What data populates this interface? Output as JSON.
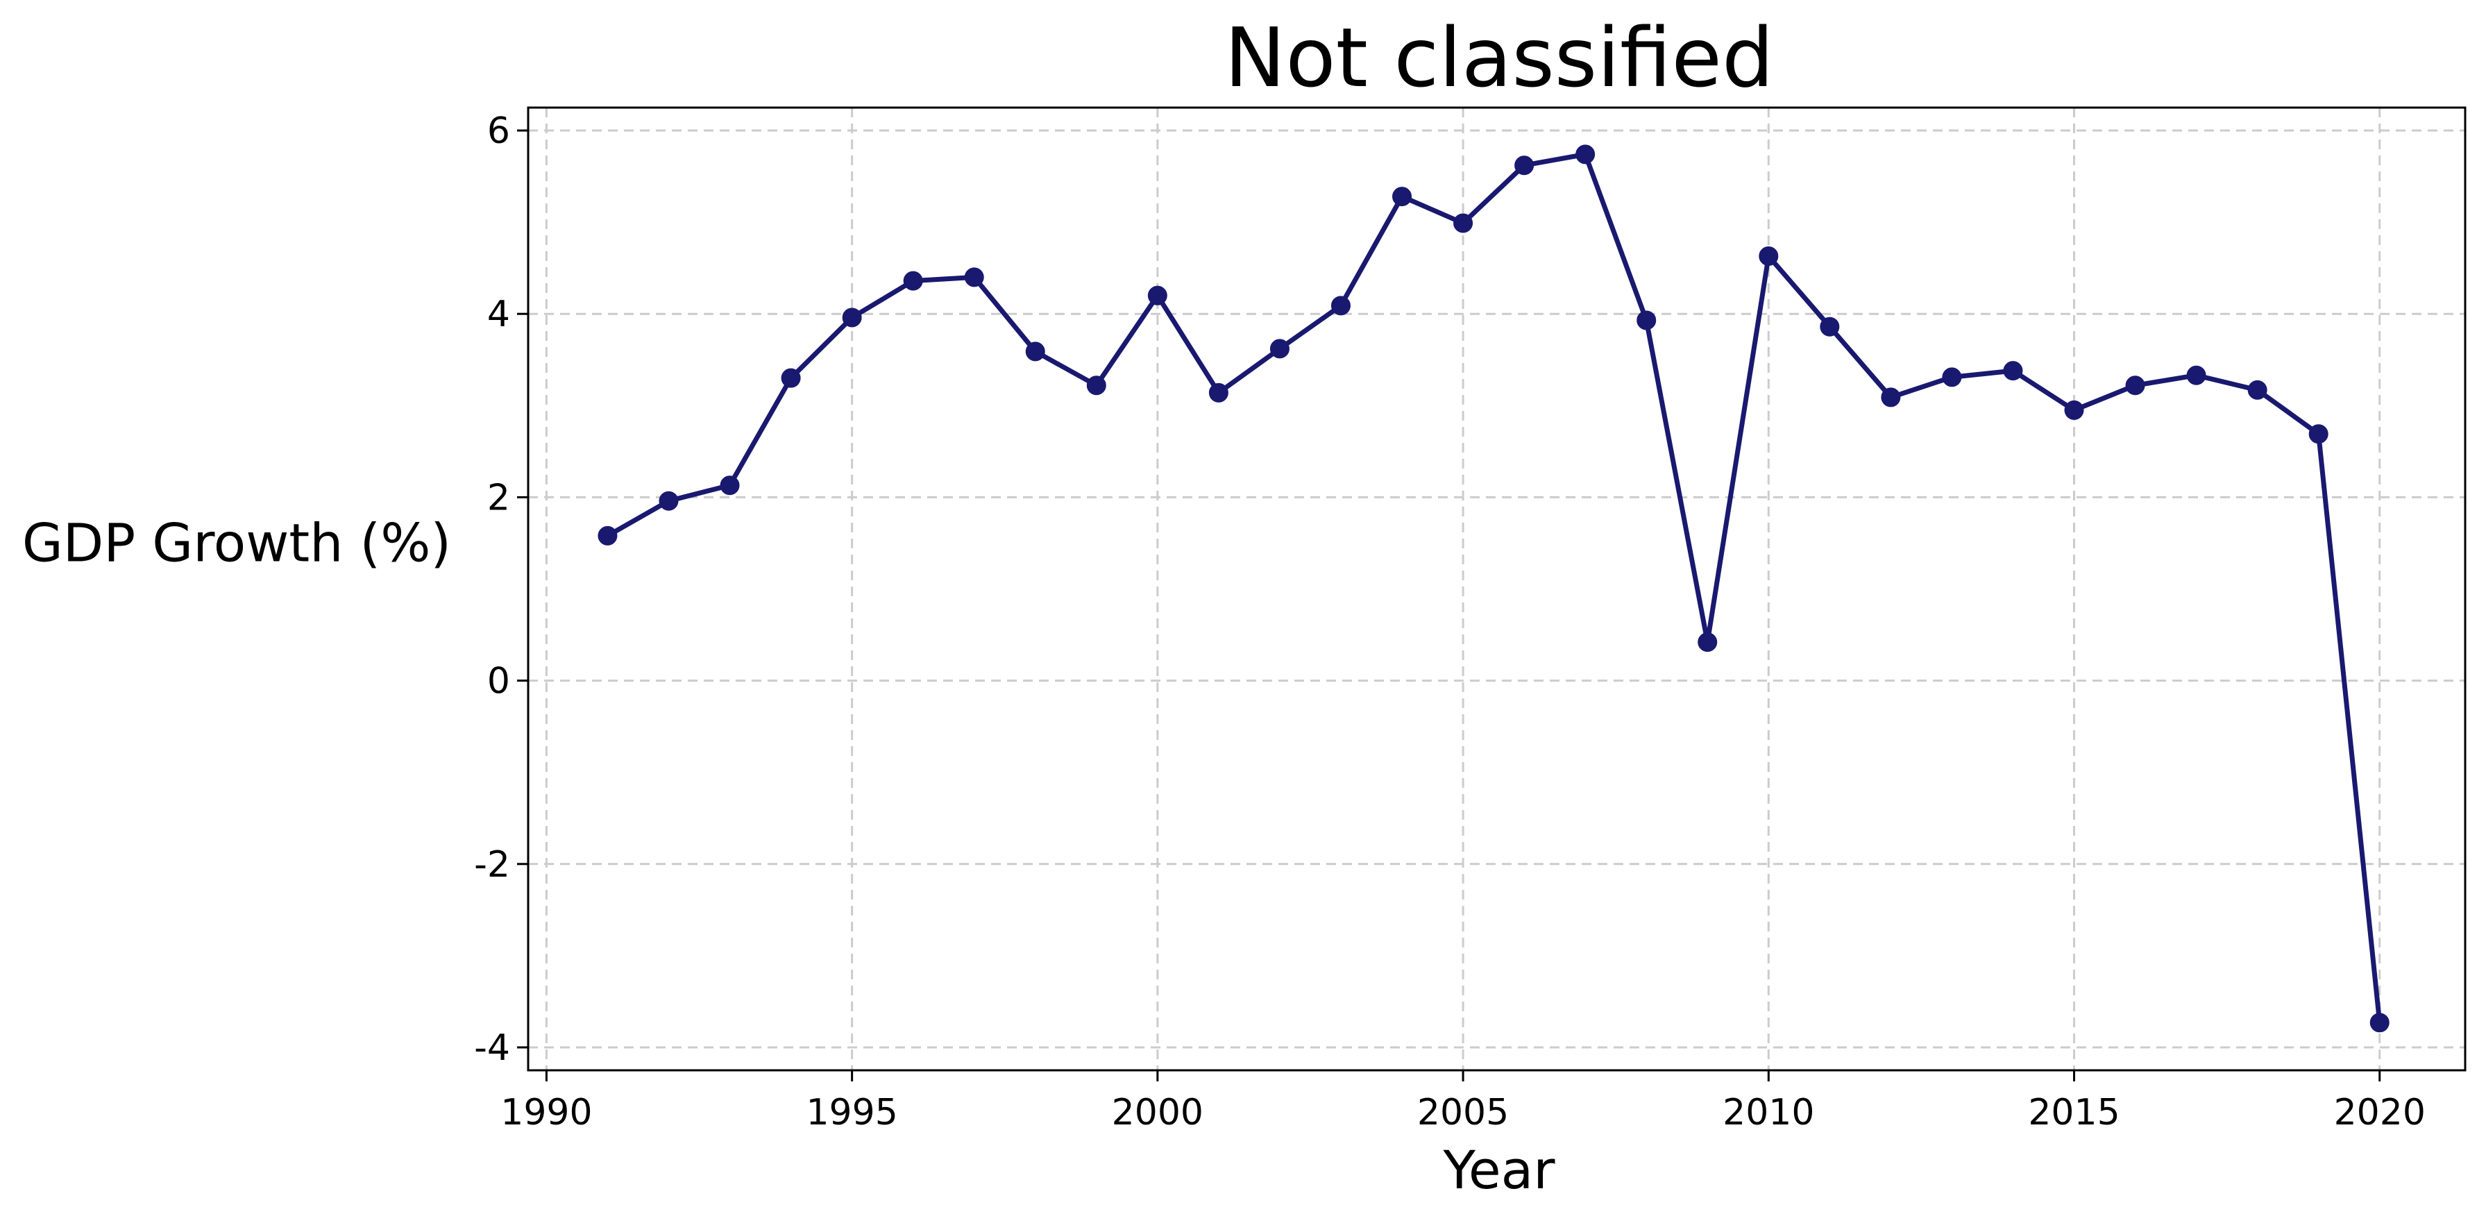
{
  "chart_data": {
    "type": "line",
    "title": "Not classified",
    "xlabel": "Year",
    "ylabel": "GDP Growth (%)",
    "xlim": [
      1989.7,
      2021.4
    ],
    "ylim": [
      -4.25,
      6.25
    ],
    "xticks": [
      1990,
      1995,
      2000,
      2005,
      2010,
      2015,
      2020
    ],
    "yticks": [
      -4,
      -2,
      0,
      2,
      4,
      6
    ],
    "ytick_labels": [
      "-4",
      "-2",
      "0",
      "2",
      "4",
      "6"
    ],
    "grid": true,
    "line_color": "#191970",
    "marker": "circle",
    "series": [
      {
        "x": [
          1991,
          1992,
          1993,
          1994,
          1995,
          1996,
          1997,
          1998,
          1999,
          2000,
          2001,
          2002,
          2003,
          2004,
          2005,
          2006,
          2007,
          2008,
          2009,
          2010,
          2011,
          2012,
          2013,
          2014,
          2015,
          2016,
          2017,
          2018,
          2019,
          2020
        ],
        "y": [
          1.58,
          1.96,
          2.13,
          3.3,
          3.96,
          4.36,
          4.4,
          3.59,
          3.22,
          4.2,
          3.14,
          3.62,
          4.09,
          5.28,
          4.99,
          5.62,
          5.74,
          3.93,
          0.42,
          4.63,
          3.86,
          3.09,
          3.31,
          3.38,
          2.95,
          3.22,
          3.33,
          3.17,
          2.69,
          -3.73
        ]
      }
    ]
  }
}
